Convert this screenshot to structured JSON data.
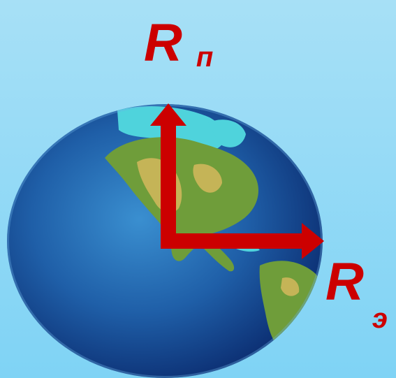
{
  "colors": {
    "background_top": "#a7e0f6",
    "background_bottom": "#7fd3f5",
    "arrow": "#cc0000",
    "label": "#cc0000",
    "ocean_light": "#3a8fd0",
    "ocean_dark": "#0c2f73",
    "land_green": "#6f9d3a",
    "land_yellow": "#c5b457",
    "land_cyan": "#4fd3dc"
  },
  "icons": {
    "earth": "earth-globe-americas",
    "polar_arrow": "arrow-up",
    "equatorial_arrow": "arrow-right"
  },
  "labels": {
    "polar_radius": {
      "main": "R",
      "sub": "п"
    },
    "equatorial_radius": {
      "main": "R",
      "sub": "э"
    }
  }
}
